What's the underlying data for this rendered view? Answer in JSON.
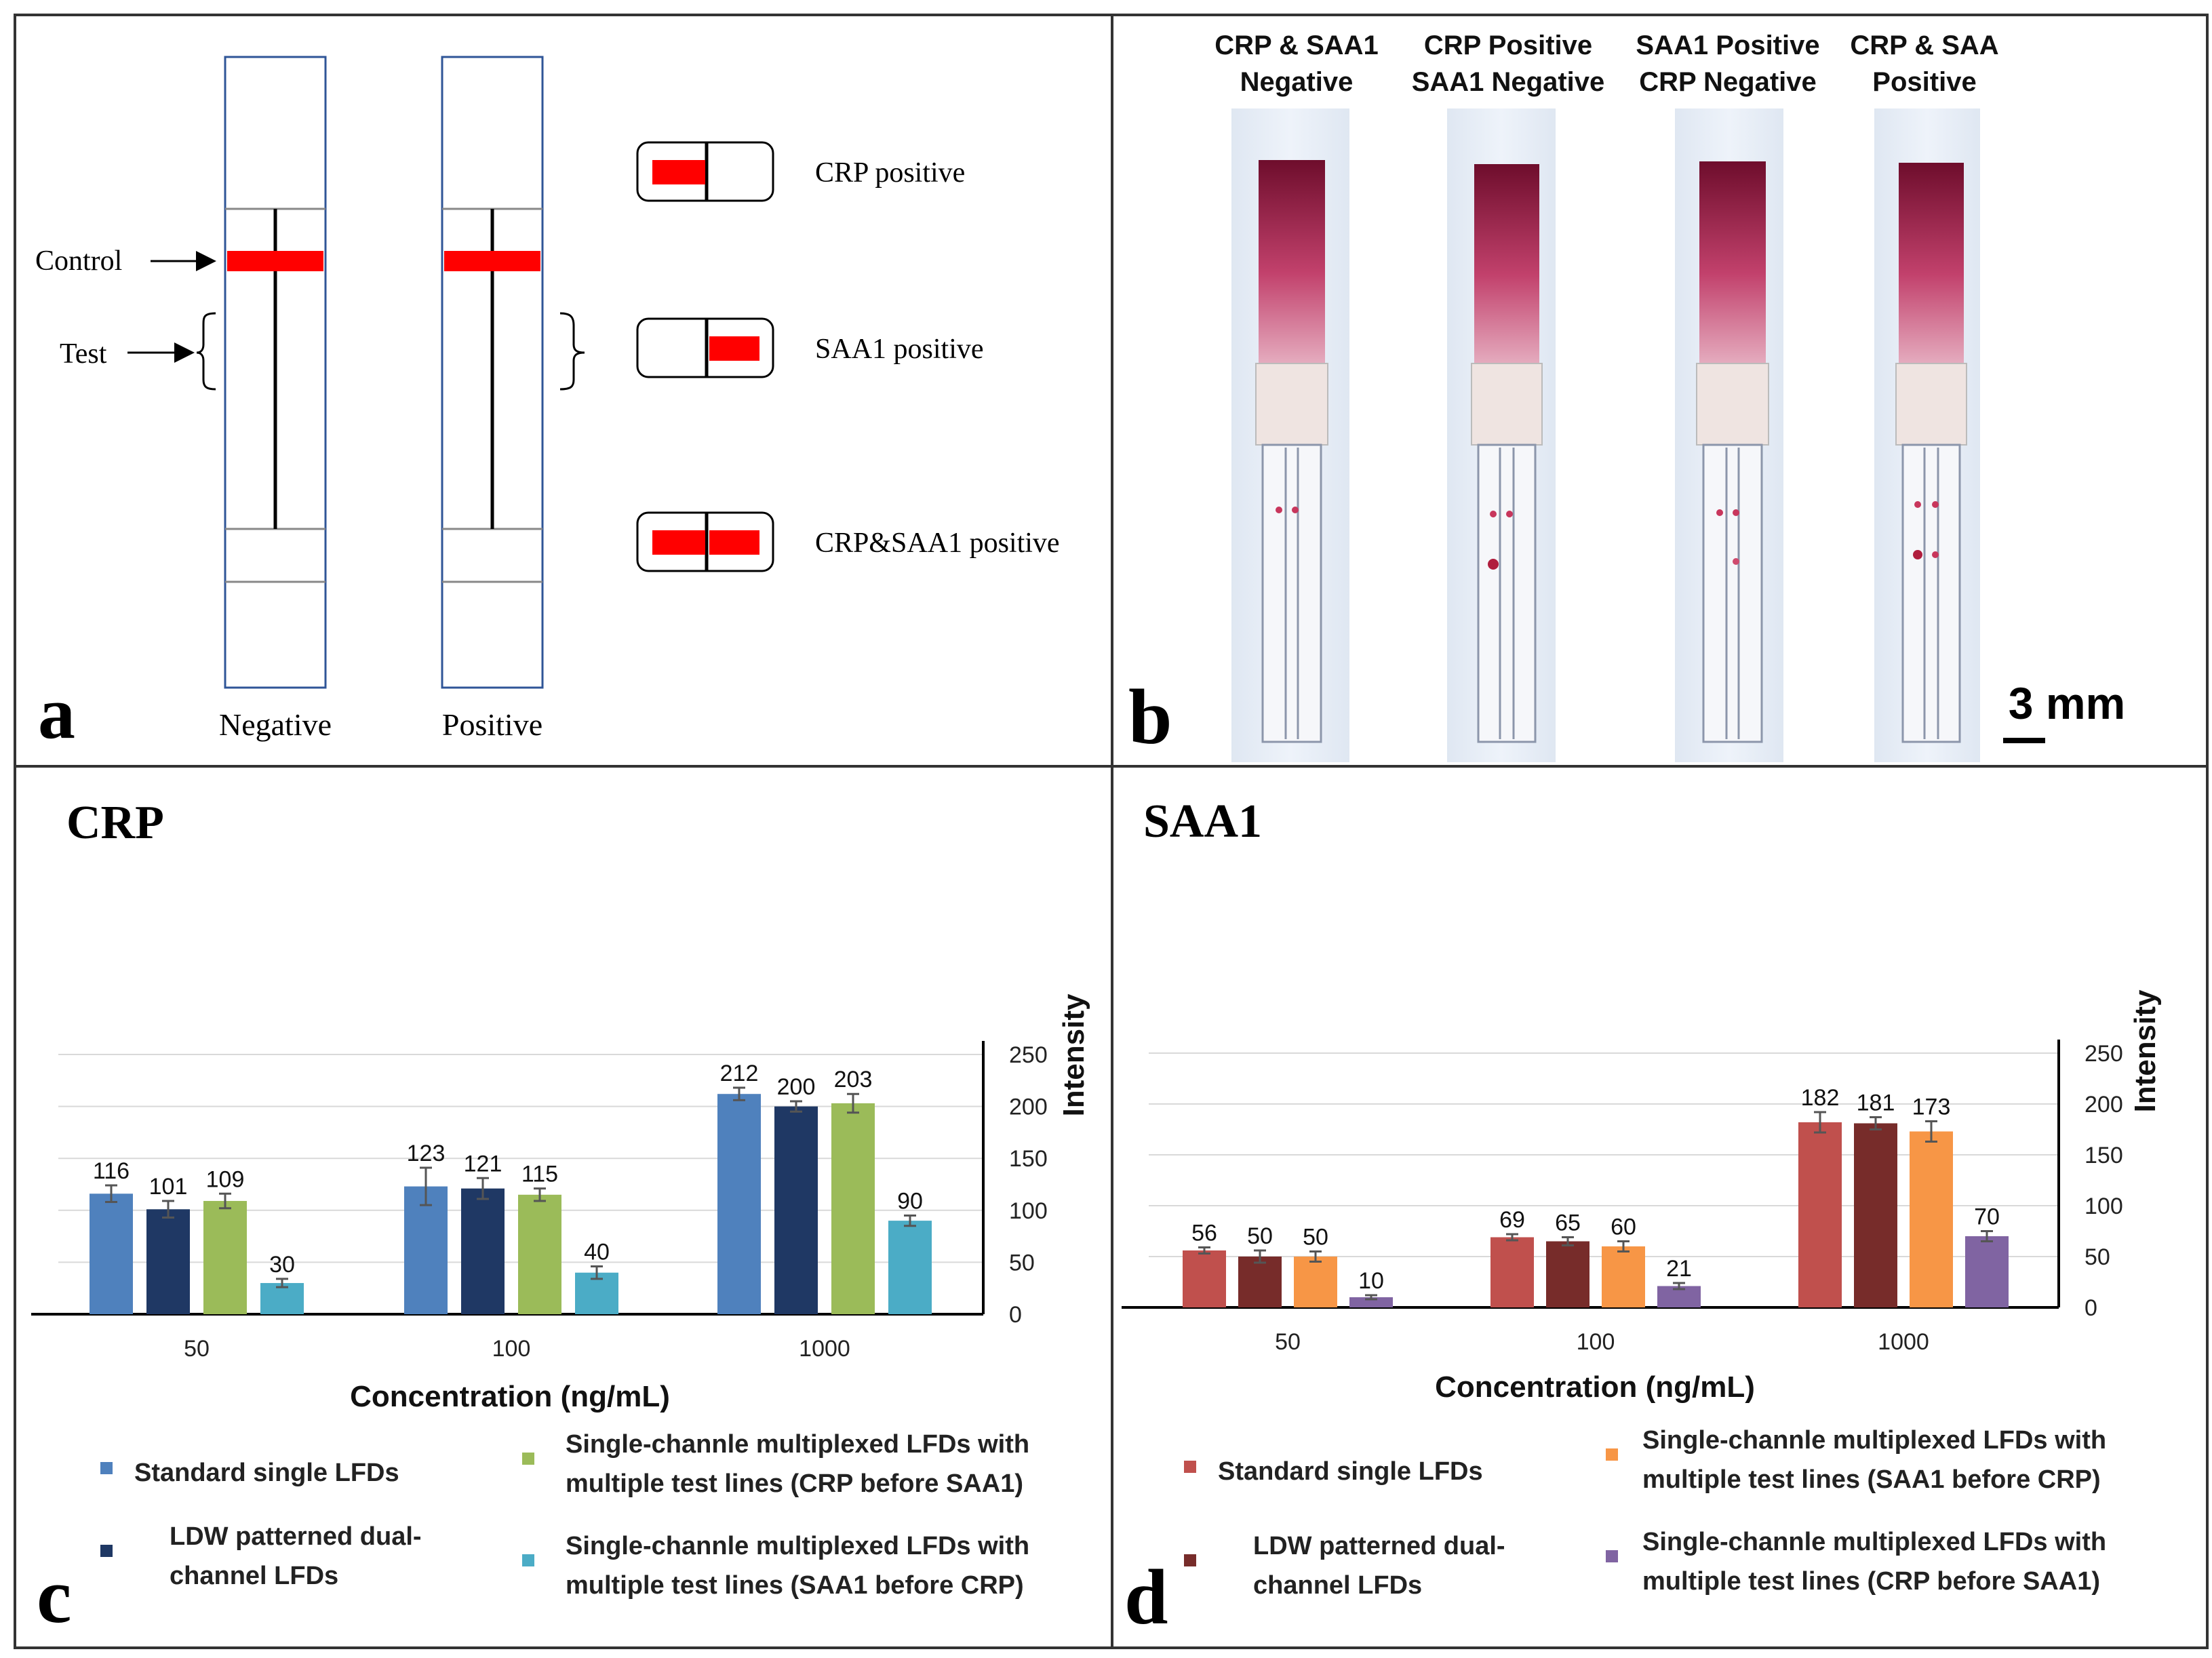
{
  "panel_a": {
    "letter": "a",
    "control_label": "Control",
    "test_label": "Test",
    "negative_label": "Negative",
    "positive_label": "Positive",
    "legend": [
      "CRP positive",
      "SAA1 positive",
      "CRP&SAA1 positive"
    ],
    "red": "#ff0000",
    "strip_border": "#2f5597"
  },
  "panel_b": {
    "letter": "b",
    "strip_labels": [
      [
        "CRP & SAA1",
        "Negative"
      ],
      [
        "CRP Positive",
        "SAA1 Negative"
      ],
      [
        "SAA1 Positive",
        "CRP Negative"
      ],
      [
        "CRP & SAA",
        "Positive"
      ]
    ],
    "scale_bar": "3 mm"
  },
  "chart_data": [
    {
      "type": "bar",
      "panel": "c",
      "title": "CRP",
      "xlabel": "Concentration (ng/mL)",
      "ylabel": "Intensity",
      "ylim": [
        0,
        250
      ],
      "yticks": [
        0,
        50,
        100,
        150,
        200,
        250
      ],
      "categories": [
        "50",
        "100",
        "1000"
      ],
      "series": [
        {
          "name": "Standard single LFDs",
          "values": [
            116,
            123,
            212
          ],
          "errors": [
            8,
            18,
            6
          ],
          "color": "#4f81bd"
        },
        {
          "name": "LDW patterned dual-channel LFDs",
          "values": [
            101,
            121,
            200
          ],
          "errors": [
            8,
            10,
            5
          ],
          "color": "#1f3864"
        },
        {
          "name": "Single-channle multiplexed LFDs with multiple test lines (CRP before SAA1)",
          "values": [
            109,
            115,
            203
          ],
          "errors": [
            7,
            6,
            9
          ],
          "color": "#9bbb59"
        },
        {
          "name": "Single-channle multiplexed LFDs with multiple test lines (SAA1 before CRP)",
          "values": [
            30,
            40,
            90
          ],
          "errors": [
            4,
            6,
            5
          ],
          "color": "#4bacc6"
        }
      ],
      "legend_labels": [
        [
          "Standard single LFDs"
        ],
        [
          "LDW patterned dual-",
          "channel LFDs"
        ],
        [
          "Single-channle multiplexed LFDs with",
          "multiple test lines (CRP before SAA1)"
        ],
        [
          "Single-channle multiplexed LFDs with",
          "multiple test lines (SAA1 before CRP)"
        ]
      ]
    },
    {
      "type": "bar",
      "panel": "d",
      "title": "SAA1",
      "xlabel": "Concentration (ng/mL)",
      "ylabel": "Intensity",
      "ylim": [
        0,
        250
      ],
      "yticks": [
        0,
        50,
        100,
        150,
        200,
        250
      ],
      "categories": [
        "50",
        "100",
        "1000"
      ],
      "series": [
        {
          "name": "Standard single LFDs",
          "values": [
            56,
            69,
            182
          ],
          "errors": [
            3,
            3,
            10
          ],
          "color": "#c0504d"
        },
        {
          "name": "LDW patterned dual-channel LFDs",
          "values": [
            50,
            65,
            181
          ],
          "errors": [
            6,
            4,
            6
          ],
          "color": "#772c2a"
        },
        {
          "name": "Single-channle multiplexed LFDs with multiple test lines (SAA1 before CRP)",
          "values": [
            50,
            60,
            173
          ],
          "errors": [
            5,
            5,
            10
          ],
          "color": "#f79646"
        },
        {
          "name": "Single-channle multiplexed LFDs with multiple test lines (CRP before SAA1)",
          "values": [
            10,
            21,
            70
          ],
          "errors": [
            2,
            3,
            5
          ],
          "color": "#8064a2"
        }
      ],
      "legend_labels": [
        [
          "Standard single LFDs"
        ],
        [
          "LDW patterned dual-",
          "channel LFDs"
        ],
        [
          "Single-channle multiplexed LFDs with",
          "multiple test lines (SAA1 before CRP)"
        ],
        [
          "Single-channle multiplexed LFDs with",
          "multiple test lines (CRP before SAA1)"
        ]
      ]
    }
  ]
}
